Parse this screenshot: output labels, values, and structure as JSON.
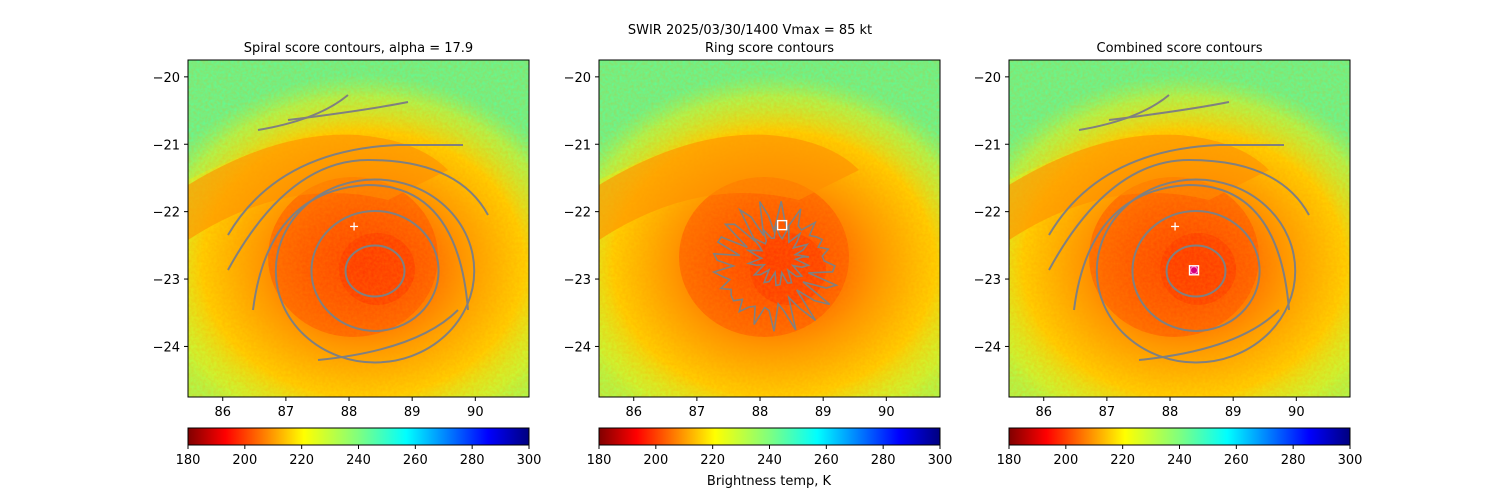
{
  "figure": {
    "suptitle": "SWIR  2025/03/30/1400    Vmax = 85 kt",
    "colorbar_label": "Brightness temp, K"
  },
  "colors": {
    "contour": "#808080",
    "center_marker": "#ffffff",
    "combined_marker": "#d6007a"
  },
  "chart_data": [
    {
      "type": "heatmap",
      "title": "Spiral score contours, alpha = 17.9",
      "xlim": [
        85.45,
        90.85
      ],
      "ylim": [
        -24.75,
        -19.75
      ],
      "xticks": [
        86,
        87,
        88,
        89,
        90
      ],
      "yticks": [
        -20,
        -21,
        -22,
        -23,
        -24
      ],
      "colorbar": {
        "cmap": "jet_r",
        "range": [
          180,
          300
        ],
        "ticks": [
          180,
          200,
          220,
          240,
          260,
          280,
          300
        ]
      },
      "storm_center": [
        88.38,
        -22.85
      ],
      "markers": [
        {
          "kind": "plus",
          "x": 88.08,
          "y": -22.22
        }
      ],
      "contours": "spiral"
    },
    {
      "type": "heatmap",
      "title": "Ring score contours",
      "xlim": [
        85.45,
        90.85
      ],
      "ylim": [
        -24.75,
        -19.75
      ],
      "xticks": [
        86,
        87,
        88,
        89,
        90
      ],
      "yticks": [
        -20,
        -21,
        -22,
        -23,
        -24
      ],
      "colorbar": {
        "cmap": "jet_r",
        "range": [
          180,
          300
        ],
        "ticks": [
          180,
          200,
          220,
          240,
          260,
          280,
          300
        ]
      },
      "storm_center": [
        88.38,
        -22.85
      ],
      "markers": [
        {
          "kind": "square",
          "x": 88.35,
          "y": -22.2
        }
      ],
      "contours": "ring"
    },
    {
      "type": "heatmap",
      "title": "Combined score contours",
      "xlim": [
        85.45,
        90.85
      ],
      "ylim": [
        -24.75,
        -19.75
      ],
      "xticks": [
        86,
        87,
        88,
        89,
        90
      ],
      "yticks": [
        -20,
        -21,
        -22,
        -23,
        -24
      ],
      "colorbar": {
        "cmap": "jet_r",
        "range": [
          180,
          300
        ],
        "ticks": [
          180,
          200,
          220,
          240,
          260,
          280,
          300
        ]
      },
      "storm_center": [
        88.38,
        -22.85
      ],
      "markers": [
        {
          "kind": "plus",
          "x": 88.08,
          "y": -22.22
        },
        {
          "kind": "square",
          "x": 88.38,
          "y": -22.87
        },
        {
          "kind": "circle",
          "x": 88.38,
          "y": -22.87
        }
      ],
      "contours": "spiral"
    }
  ]
}
